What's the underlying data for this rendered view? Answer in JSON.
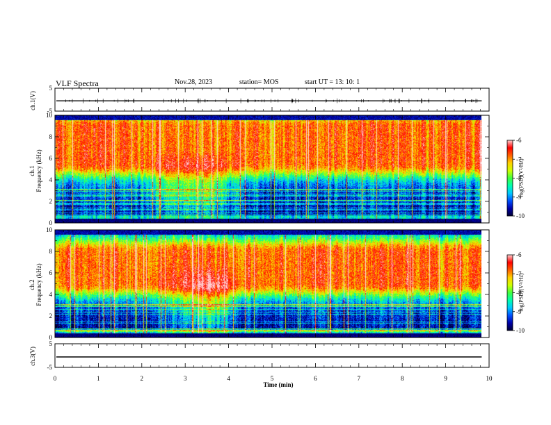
{
  "header": {
    "title": "VLF Spectra",
    "date": "Nov.28, 2023",
    "station": "station= MOS",
    "start": "start  UT =   13: 10: 1"
  },
  "colors": {
    "colormap": [
      "#000033",
      "#0000aa",
      "#0050ff",
      "#00c8ff",
      "#00ffb0",
      "#40ff40",
      "#d0ff00",
      "#ffd000",
      "#ff6000",
      "#ff0000",
      "#ffd0d0"
    ]
  },
  "chart_data": [
    {
      "type": "line",
      "name": "ch1-waveform",
      "ylabel": "ch.1(V)",
      "ylim": [
        -5,
        5
      ],
      "yticks": [
        "5",
        "-5"
      ],
      "xlim": [
        0,
        10
      ],
      "level": -0.5
    },
    {
      "type": "heatmap",
      "name": "ch1-spectrogram",
      "ylabel_line1": "ch.1",
      "ylabel_line2": "Frequency (kHz)",
      "xlim": [
        0,
        10
      ],
      "data_end_min": 9.83,
      "ylim": [
        0,
        10
      ],
      "yticks": [
        "0",
        "2",
        "4",
        "6",
        "8",
        "10"
      ],
      "colorbar": {
        "label": "log(PSD)(V²/Hz)",
        "range": [
          -10,
          -6
        ],
        "ticks": [
          "-6",
          "-7",
          "-8",
          "-9",
          "-10"
        ]
      },
      "red_band_khz": [
        5.5,
        9
      ],
      "hiss_center_min": 3.5
    },
    {
      "type": "heatmap",
      "name": "ch2-spectrogram",
      "ylabel_line1": "ch.2",
      "ylabel_line2": "Frequency (kHz)",
      "xlim": [
        0,
        10
      ],
      "data_end_min": 9.83,
      "ylim": [
        0,
        10
      ],
      "yticks": [
        "0",
        "2",
        "4",
        "6",
        "8",
        "10"
      ],
      "colorbar": {
        "label": "log(PSD)(V²/Hz)",
        "range": [
          -10,
          -6
        ],
        "ticks": [
          "-6",
          "-7",
          "-8",
          "-9",
          "-10"
        ]
      },
      "red_band_khz": [
        5,
        8
      ],
      "hiss_center_min": 3.6
    },
    {
      "type": "line",
      "name": "ch3-waveform",
      "ylabel": "ch.3(V)",
      "ylim": [
        -5,
        5
      ],
      "yticks": [
        "5",
        "-5"
      ],
      "xlim": [
        0,
        10
      ],
      "level": -0.6,
      "xlabel": "Time (min)",
      "xticks": [
        "0",
        "1",
        "2",
        "3",
        "4",
        "5",
        "6",
        "7",
        "8",
        "9",
        "10"
      ]
    }
  ]
}
